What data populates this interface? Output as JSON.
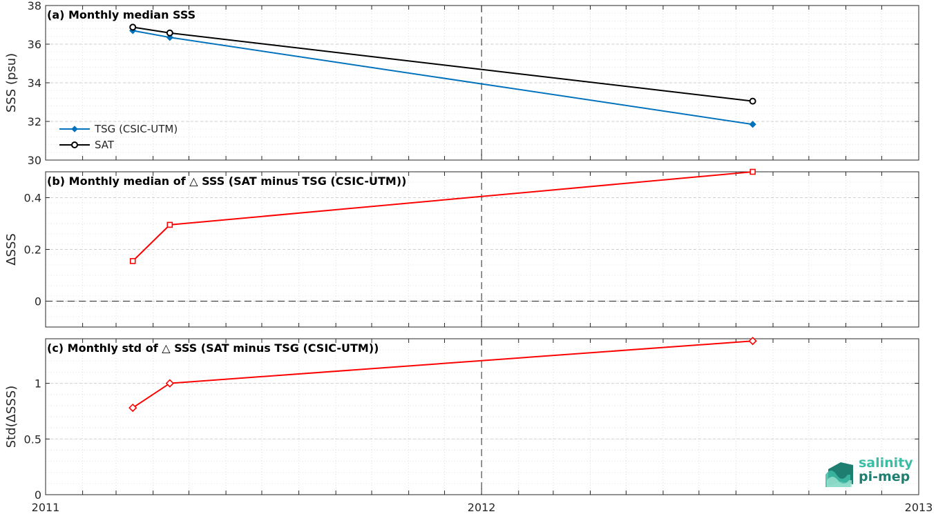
{
  "colors": {
    "tsg": "#0072BD",
    "sat": "#000000",
    "delta": "#FF0000",
    "logo_light": "#3dbba3",
    "logo_dark": "#1e7f70"
  },
  "logo": {
    "line1": "salinity",
    "line2": "pi-mep"
  },
  "chart_data": [
    {
      "id": "a",
      "type": "line",
      "title": "(a) Monthly median SSS",
      "ylabel": "SSS (psu)",
      "xlim": [
        "2011-01-01",
        "2013-01-01"
      ],
      "ylim": [
        30,
        38
      ],
      "yticks": [
        30,
        32,
        34,
        36,
        38
      ],
      "xticks": [
        "2011",
        "2012",
        "2013"
      ],
      "grid": true,
      "legend_placement": "bottom-left",
      "series": [
        {
          "name": "TSG (CSIC-UTM)",
          "color": "#0072BD",
          "marker": "diamond",
          "x": [
            "2011-03-15",
            "2011-04-15",
            "2012-08-15"
          ],
          "y": [
            36.7,
            36.35,
            31.85
          ]
        },
        {
          "name": "SAT",
          "color": "#000000",
          "marker": "circle",
          "x": [
            "2011-03-15",
            "2011-04-15",
            "2012-08-15"
          ],
          "y": [
            36.88,
            36.58,
            33.05
          ]
        }
      ]
    },
    {
      "id": "b",
      "type": "line",
      "title": "(b) Monthly median of △ SSS (SAT minus TSG (CSIC-UTM))",
      "ylabel": "ΔSSS",
      "xlim": [
        "2011-01-01",
        "2013-01-01"
      ],
      "ylim": [
        -0.1,
        0.5
      ],
      "yticks": [
        0,
        0.2,
        0.4
      ],
      "xticks": [
        "2011",
        "2012",
        "2013"
      ],
      "grid": true,
      "zero_line": true,
      "series": [
        {
          "color": "#FF0000",
          "marker": "square",
          "x": [
            "2011-03-15",
            "2011-04-15",
            "2012-08-15"
          ],
          "y": [
            0.155,
            0.295,
            0.5
          ]
        }
      ]
    },
    {
      "id": "c",
      "type": "line",
      "title": "(c) Monthly std of △ SSS (SAT minus TSG (CSIC-UTM))",
      "ylabel": "Std(ΔSSS)",
      "xlim": [
        "2011-01-01",
        "2013-01-01"
      ],
      "ylim": [
        0,
        1.4
      ],
      "yticks": [
        0,
        0.5,
        1
      ],
      "xticks": [
        "2011",
        "2012",
        "2013"
      ],
      "grid": true,
      "series": [
        {
          "color": "#FF0000",
          "marker": "diamond",
          "x": [
            "2011-03-15",
            "2011-04-15",
            "2012-08-15"
          ],
          "y": [
            0.78,
            1.0,
            1.38
          ]
        }
      ]
    }
  ]
}
